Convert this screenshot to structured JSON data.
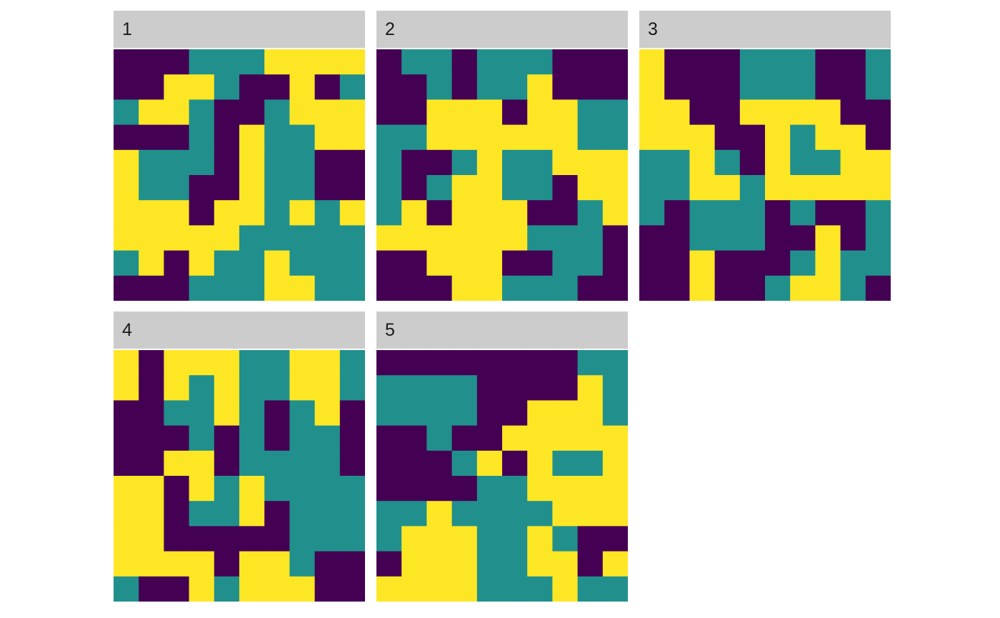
{
  "palette": {
    "1": "#440154",
    "2": "#21908c",
    "3": "#fde725"
  },
  "chart_data": [
    {
      "type": "heatmap",
      "panel": "1",
      "grid_size": 10,
      "categories": [
        1,
        2,
        3
      ],
      "cells": [
        [
          1,
          1,
          1,
          2,
          2,
          2,
          3,
          3,
          3,
          3
        ],
        [
          1,
          1,
          3,
          3,
          2,
          1,
          1,
          3,
          1,
          2
        ],
        [
          2,
          3,
          3,
          2,
          1,
          1,
          2,
          3,
          3,
          3
        ],
        [
          1,
          1,
          1,
          2,
          1,
          3,
          2,
          2,
          3,
          3
        ],
        [
          3,
          2,
          2,
          2,
          1,
          3,
          2,
          2,
          1,
          1
        ],
        [
          3,
          2,
          2,
          1,
          1,
          3,
          2,
          2,
          1,
          1
        ],
        [
          3,
          3,
          3,
          1,
          3,
          3,
          2,
          3,
          2,
          3
        ],
        [
          3,
          3,
          3,
          3,
          3,
          2,
          2,
          2,
          2,
          2
        ],
        [
          2,
          3,
          1,
          3,
          2,
          2,
          3,
          2,
          2,
          2
        ],
        [
          1,
          1,
          1,
          2,
          2,
          2,
          3,
          3,
          2,
          2
        ]
      ]
    },
    {
      "type": "heatmap",
      "panel": "2",
      "grid_size": 10,
      "categories": [
        1,
        2,
        3
      ],
      "cells": [
        [
          1,
          2,
          2,
          1,
          2,
          2,
          2,
          1,
          1,
          1
        ],
        [
          1,
          1,
          2,
          1,
          2,
          2,
          3,
          1,
          1,
          1
        ],
        [
          1,
          1,
          3,
          3,
          3,
          1,
          3,
          3,
          2,
          2
        ],
        [
          2,
          2,
          3,
          3,
          3,
          3,
          3,
          3,
          2,
          2
        ],
        [
          2,
          1,
          1,
          2,
          3,
          2,
          2,
          3,
          3,
          3
        ],
        [
          2,
          1,
          2,
          3,
          3,
          2,
          2,
          1,
          3,
          3
        ],
        [
          2,
          3,
          1,
          3,
          3,
          3,
          1,
          1,
          2,
          3
        ],
        [
          3,
          3,
          3,
          3,
          3,
          3,
          2,
          2,
          2,
          1
        ],
        [
          1,
          1,
          3,
          3,
          3,
          1,
          1,
          2,
          2,
          1
        ],
        [
          1,
          1,
          1,
          3,
          3,
          2,
          2,
          2,
          1,
          1
        ]
      ]
    },
    {
      "type": "heatmap",
      "panel": "3",
      "grid_size": 10,
      "categories": [
        1,
        2,
        3
      ],
      "cells": [
        [
          3,
          1,
          1,
          1,
          2,
          2,
          2,
          1,
          1,
          2
        ],
        [
          3,
          1,
          1,
          1,
          2,
          2,
          2,
          1,
          1,
          2
        ],
        [
          3,
          3,
          1,
          1,
          3,
          3,
          3,
          3,
          1,
          1
        ],
        [
          3,
          3,
          3,
          1,
          1,
          3,
          2,
          3,
          3,
          1
        ],
        [
          2,
          2,
          3,
          2,
          1,
          3,
          2,
          2,
          3,
          3
        ],
        [
          2,
          2,
          3,
          3,
          2,
          3,
          3,
          3,
          3,
          3
        ],
        [
          2,
          1,
          2,
          2,
          2,
          1,
          2,
          1,
          1,
          2
        ],
        [
          1,
          1,
          2,
          2,
          2,
          1,
          1,
          3,
          1,
          2
        ],
        [
          1,
          1,
          3,
          1,
          1,
          1,
          2,
          3,
          2,
          2
        ],
        [
          1,
          1,
          3,
          1,
          1,
          2,
          3,
          3,
          2,
          1
        ]
      ]
    },
    {
      "type": "heatmap",
      "panel": "4",
      "grid_size": 10,
      "categories": [
        1,
        2,
        3
      ],
      "cells": [
        [
          3,
          1,
          3,
          3,
          3,
          2,
          2,
          3,
          3,
          2
        ],
        [
          3,
          1,
          3,
          2,
          3,
          2,
          2,
          3,
          3,
          2
        ],
        [
          1,
          1,
          2,
          2,
          3,
          2,
          1,
          2,
          3,
          1
        ],
        [
          1,
          1,
          1,
          2,
          1,
          2,
          1,
          2,
          2,
          1
        ],
        [
          1,
          1,
          3,
          3,
          1,
          2,
          2,
          2,
          2,
          1
        ],
        [
          3,
          3,
          1,
          3,
          2,
          3,
          2,
          2,
          2,
          2
        ],
        [
          3,
          3,
          1,
          2,
          2,
          3,
          1,
          2,
          2,
          2
        ],
        [
          3,
          3,
          1,
          1,
          1,
          1,
          1,
          2,
          2,
          2
        ],
        [
          3,
          3,
          3,
          3,
          1,
          3,
          3,
          2,
          1,
          1
        ],
        [
          2,
          1,
          1,
          3,
          2,
          3,
          3,
          3,
          1,
          1
        ]
      ]
    },
    {
      "type": "heatmap",
      "panel": "5",
      "grid_size": 10,
      "categories": [
        1,
        2,
        3
      ],
      "cells": [
        [
          1,
          1,
          1,
          1,
          1,
          1,
          1,
          1,
          2,
          2
        ],
        [
          2,
          2,
          2,
          2,
          1,
          1,
          1,
          1,
          3,
          2
        ],
        [
          2,
          2,
          2,
          2,
          1,
          1,
          3,
          3,
          3,
          2
        ],
        [
          1,
          1,
          2,
          1,
          1,
          3,
          3,
          3,
          3,
          3
        ],
        [
          1,
          1,
          1,
          2,
          3,
          1,
          3,
          2,
          2,
          3
        ],
        [
          1,
          1,
          1,
          1,
          2,
          2,
          3,
          3,
          3,
          3
        ],
        [
          2,
          2,
          3,
          2,
          2,
          2,
          2,
          3,
          3,
          3
        ],
        [
          2,
          3,
          3,
          3,
          2,
          2,
          3,
          2,
          1,
          1
        ],
        [
          1,
          3,
          3,
          3,
          2,
          2,
          3,
          3,
          1,
          3
        ],
        [
          3,
          3,
          3,
          3,
          2,
          2,
          2,
          3,
          2,
          2
        ]
      ]
    }
  ],
  "panels": [
    {
      "label": "1"
    },
    {
      "label": "2"
    },
    {
      "label": "3"
    },
    {
      "label": "4"
    },
    {
      "label": "5"
    }
  ]
}
